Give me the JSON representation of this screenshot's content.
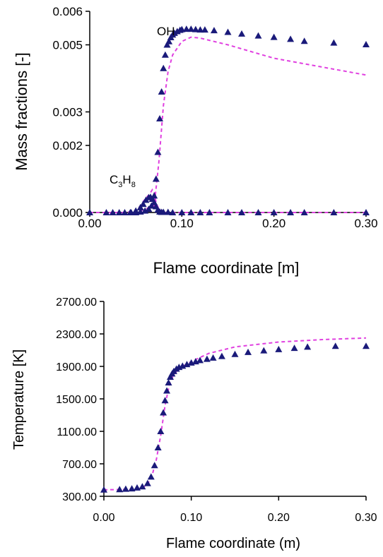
{
  "colors": {
    "markers": "#1a1a7a",
    "dashed_line": "#e040e0",
    "axis": "#000000"
  },
  "chart_data": [
    {
      "type": "scatter",
      "xlabel": "Flame coordinate [m]",
      "ylabel": "Mass fractions [-]",
      "xlim": [
        0,
        0.3
      ],
      "ylim": [
        0,
        0.006
      ],
      "grid": false,
      "x_tick_labels": [
        "0.00",
        "0.10",
        "0.20",
        "0.30"
      ],
      "y_tick_labels": [
        "0.000",
        "0.002",
        "0.003",
        "0.005",
        "0.006"
      ],
      "annotations": {
        "oh": "OH",
        "c3h8_C": "C",
        "c3h8_3": "3",
        "c3h8_H": "H",
        "c3h8_8": "8"
      },
      "series": [
        {
          "marker": "triangle",
          "color": "#1a1a7a",
          "x": [
            0.0,
            0.018,
            0.025,
            0.032,
            0.038,
            0.044,
            0.05,
            0.055,
            0.06,
            0.064,
            0.067,
            0.07,
            0.072,
            0.074,
            0.076,
            0.078,
            0.08,
            0.082,
            0.084,
            0.086,
            0.088,
            0.09,
            0.092,
            0.095,
            0.098,
            0.1,
            0.105,
            0.11,
            0.115,
            0.12,
            0.125,
            0.135,
            0.15,
            0.165,
            0.183,
            0.2,
            0.218,
            0.233,
            0.265,
            0.3
          ],
          "y": [
            0.0,
            0.0,
            0.0,
            0.0,
            0.0,
            0.0,
            0.0,
            2e-05,
            5e-05,
            0.0001,
            0.0002,
            0.0005,
            0.001,
            0.0018,
            0.0028,
            0.0036,
            0.0043,
            0.0047,
            0.005,
            0.0051,
            0.00522,
            0.0053,
            0.00535,
            0.0054,
            0.00544,
            0.00546,
            0.00547,
            0.00547,
            0.00546,
            0.00545,
            0.00545,
            0.00543,
            0.00538,
            0.00533,
            0.00527,
            0.00523,
            0.00517,
            0.00511,
            0.00506,
            0.00501
          ]
        },
        {
          "marker": "triangle",
          "color": "#1a1a7a",
          "x": [
            0.045,
            0.05,
            0.055,
            0.058,
            0.061,
            0.064,
            0.066,
            0.068,
            0.07,
            0.072,
            0.074,
            0.076,
            0.078,
            0.08,
            0.085,
            0.09,
            0.1,
            0.11,
            0.12,
            0.13,
            0.15,
            0.165,
            0.183,
            0.2,
            0.218,
            0.233,
            0.265,
            0.3
          ],
          "y": [
            0.0,
            5e-05,
            0.00015,
            0.00025,
            0.00037,
            0.00045,
            0.00046,
            0.0004,
            0.0003,
            0.00018,
            8e-05,
            2e-05,
            1e-05,
            1e-05,
            1e-05,
            0.0,
            0.0,
            0.0,
            0.0,
            0.0,
            0.0,
            0.0,
            0.0,
            0.0,
            0.0,
            0.0,
            0.0,
            0.0
          ]
        },
        {
          "line": "dashed",
          "color": "#e040e0",
          "x": [
            0.0,
            0.05,
            0.07,
            0.075,
            0.08,
            0.085,
            0.09,
            0.1,
            0.11,
            0.12,
            0.15,
            0.2,
            0.25,
            0.3
          ],
          "y": [
            0.0,
            0.0,
            0.0002,
            0.0015,
            0.0032,
            0.0042,
            0.0047,
            0.0051,
            0.00523,
            0.0052,
            0.005,
            0.0046,
            0.00435,
            0.0041
          ]
        },
        {
          "line": "dashed",
          "color": "#e040e0",
          "x": [
            0.0,
            0.04,
            0.05,
            0.055,
            0.06,
            0.065,
            0.068,
            0.07,
            0.072,
            0.075,
            0.08,
            0.1,
            0.3
          ],
          "y": [
            0.0,
            0.0,
            5e-05,
            0.0002,
            0.0004,
            0.00055,
            0.00068,
            0.0006,
            0.0003,
            0.0001,
            0.0,
            0.0,
            0.0
          ]
        }
      ]
    },
    {
      "type": "scatter",
      "xlabel": "Flame coordinate (m)",
      "ylabel": "Temperature [K]",
      "xlim": [
        0,
        0.3
      ],
      "ylim": [
        300,
        2700
      ],
      "grid": false,
      "x_tick_labels": [
        "0.00",
        "0.10",
        "0.20",
        "0.30"
      ],
      "y_tick_labels": [
        "300.00",
        "700.00",
        "1100.00",
        "1500.00",
        "1900.00",
        "2300.00",
        "2700.00"
      ],
      "series": [
        {
          "marker": "triangle",
          "color": "#1a1a7a",
          "x": [
            0.0,
            0.018,
            0.025,
            0.032,
            0.038,
            0.044,
            0.05,
            0.054,
            0.058,
            0.062,
            0.065,
            0.068,
            0.07,
            0.072,
            0.074,
            0.076,
            0.078,
            0.08,
            0.083,
            0.086,
            0.09,
            0.095,
            0.1,
            0.105,
            0.11,
            0.118,
            0.125,
            0.135,
            0.15,
            0.165,
            0.183,
            0.2,
            0.218,
            0.233,
            0.265,
            0.3
          ],
          "y": [
            380,
            385,
            390,
            395,
            405,
            420,
            460,
            540,
            680,
            900,
            1100,
            1330,
            1480,
            1600,
            1700,
            1770,
            1810,
            1840,
            1870,
            1890,
            1905,
            1925,
            1945,
            1960,
            1975,
            1990,
            2005,
            2025,
            2050,
            2075,
            2095,
            2110,
            2125,
            2140,
            2150,
            2150
          ]
        },
        {
          "line": "dashed",
          "color": "#e040e0",
          "x": [
            0.0,
            0.03,
            0.045,
            0.05,
            0.055,
            0.06,
            0.065,
            0.07,
            0.075,
            0.08,
            0.085,
            0.09,
            0.1,
            0.12,
            0.15,
            0.2,
            0.25,
            0.3
          ],
          "y": [
            380,
            385,
            410,
            450,
            550,
            750,
            1050,
            1420,
            1680,
            1800,
            1860,
            1900,
            1960,
            2060,
            2140,
            2200,
            2230,
            2250
          ]
        }
      ]
    }
  ]
}
